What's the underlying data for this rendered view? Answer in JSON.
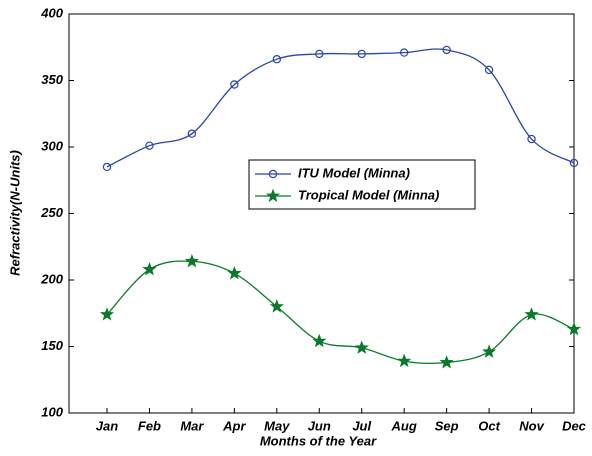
{
  "chart_data": {
    "type": "line",
    "x_label": "Months of the Year",
    "y_label": "Refractivity(N-Units)",
    "categories": [
      "Jan",
      "Feb",
      "Mar",
      "Apr",
      "May",
      "Jun",
      "Jul",
      "Aug",
      "Sep",
      "Oct",
      "Nov",
      "Dec"
    ],
    "series": [
      {
        "name": "ITU Model (Minna)",
        "color": "#2b44a8",
        "marker": "circle",
        "values": [
          285,
          301,
          310,
          347,
          366,
          370,
          370,
          371,
          373,
          358,
          306,
          288
        ]
      },
      {
        "name": "Tropical Model (Minna)",
        "color": "#0a7a2a",
        "marker": "star",
        "values": [
          174,
          208,
          214,
          205,
          180,
          154,
          149,
          139,
          138,
          146,
          174,
          163
        ]
      }
    ],
    "ylim": [
      100,
      400
    ],
    "yticks": [
      100,
      150,
      200,
      250,
      300,
      350,
      400
    ],
    "grid": false
  }
}
